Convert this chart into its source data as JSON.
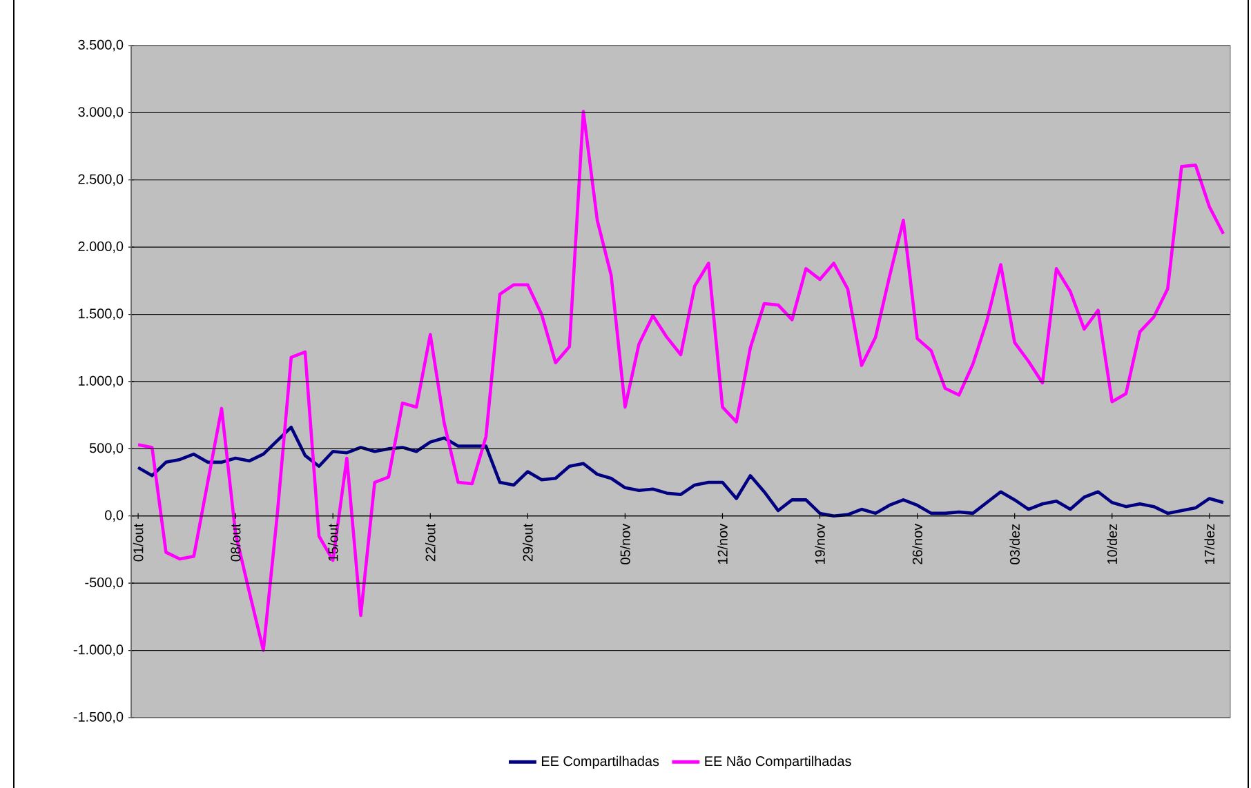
{
  "chart_data": {
    "type": "line",
    "categories": [
      "01/out",
      null,
      null,
      null,
      null,
      null,
      null,
      "08/out",
      null,
      null,
      null,
      null,
      null,
      null,
      "15/out",
      null,
      null,
      null,
      null,
      null,
      null,
      "22/out",
      null,
      null,
      null,
      null,
      null,
      null,
      "29/out",
      null,
      null,
      null,
      null,
      null,
      null,
      "05/nov",
      null,
      null,
      null,
      null,
      null,
      null,
      "12/nov",
      null,
      null,
      null,
      null,
      null,
      null,
      "19/nov",
      null,
      null,
      null,
      null,
      null,
      null,
      "26/nov",
      null,
      null,
      null,
      null,
      null,
      null,
      "03/dez",
      null,
      null,
      null,
      null,
      null,
      null,
      "10/dez",
      null,
      null,
      null,
      null,
      null,
      null,
      "17/dez",
      null
    ],
    "series": [
      {
        "name": "EE Compartilhadas",
        "color": "#000080",
        "values": [
          360,
          300,
          400,
          420,
          460,
          400,
          400,
          430,
          410,
          460,
          560,
          660,
          450,
          370,
          480,
          470,
          510,
          480,
          500,
          510,
          480,
          550,
          580,
          520,
          520,
          520,
          250,
          230,
          330,
          270,
          280,
          370,
          390,
          310,
          280,
          210,
          190,
          200,
          170,
          160,
          230,
          250,
          250,
          130,
          300,
          180,
          40,
          120,
          120,
          20,
          0,
          10,
          50,
          20,
          80,
          120,
          80,
          20,
          20,
          30,
          20,
          100,
          180,
          120,
          50,
          90,
          110,
          50,
          140,
          180,
          100,
          70,
          90,
          70,
          20,
          40,
          60,
          130,
          100
        ]
      },
      {
        "name": "EE Não Compartilhadas",
        "color": "#ff00ff",
        "values": [
          530,
          510,
          -270,
          -320,
          -300,
          250,
          800,
          -130,
          -570,
          -1000,
          10,
          1180,
          1220,
          -150,
          -330,
          430,
          -740,
          250,
          290,
          840,
          810,
          1350,
          690,
          250,
          240,
          590,
          1650,
          1720,
          1720,
          1500,
          1140,
          1260,
          3010,
          2200,
          1790,
          810,
          1280,
          1490,
          1330,
          1200,
          1710,
          1880,
          810,
          700,
          1250,
          1580,
          1570,
          1460,
          1840,
          1760,
          1880,
          1690,
          1120,
          1330,
          1780,
          2200,
          1320,
          1230,
          950,
          900,
          1130,
          1450,
          1870,
          1290,
          1150,
          990,
          1840,
          1670,
          1390,
          1530,
          850,
          910,
          1370,
          1480,
          1690,
          2600,
          2610,
          2300,
          2100
        ]
      }
    ],
    "ylim": [
      -1500,
      3500
    ],
    "yticks": [
      {
        "value": -1500,
        "label": "-1.500,0"
      },
      {
        "value": -1000,
        "label": "-1.000,0"
      },
      {
        "value": -500,
        "label": "-500,0"
      },
      {
        "value": 0,
        "label": "0,0"
      },
      {
        "value": 500,
        "label": "500,0"
      },
      {
        "value": 1000,
        "label": "1.000,0"
      },
      {
        "value": 1500,
        "label": "1.500,0"
      },
      {
        "value": 2000,
        "label": "2.000,0"
      },
      {
        "value": 2500,
        "label": "2.500,0"
      },
      {
        "value": 3000,
        "label": "3.000,0"
      },
      {
        "value": 3500,
        "label": "3.500,0"
      }
    ],
    "grid": "y",
    "legend": "bottom",
    "marker": "none",
    "line_style": "solid"
  }
}
